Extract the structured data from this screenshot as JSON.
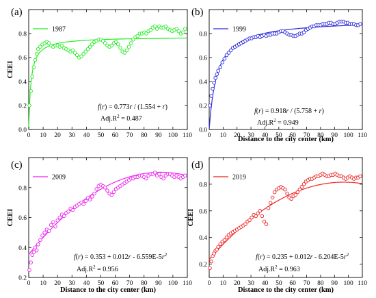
{
  "chart_data": [
    {
      "type": "scatter",
      "panel_label": "(a)",
      "series_name": "1987",
      "color": "#22ee22",
      "xlabel": "",
      "ylabel": "CEEI",
      "xlim": [
        0,
        110
      ],
      "ylim": [
        0,
        1.0
      ],
      "xticks": [
        0,
        10,
        20,
        30,
        40,
        50,
        60,
        70,
        80,
        90,
        100,
        110
      ],
      "yticks": [
        0.0,
        0.2,
        0.4,
        0.6,
        0.8
      ],
      "equation": "f(r) = 0.773r / (1.554 + r)",
      "eq_parts": {
        "fn": "f",
        "p1": "(",
        "var1": "r",
        "p2": ") = 0.773",
        "var2": "r",
        "p3": " / (1.554 + ",
        "var3": "r",
        "p4": ")"
      },
      "adj_r2": "Adj.R² = 0.487",
      "adj_parts": {
        "lead": "Adj.R",
        "sup": "2",
        "tail": " = 0.487"
      },
      "fit": {
        "kind": "hyperbolic",
        "a": 0.773,
        "b": 1.554
      },
      "points": {
        "x": [
          0.5,
          1.5,
          2.5,
          3.5,
          4.5,
          5.5,
          6.5,
          8,
          9.5,
          11,
          12.5,
          14,
          15.5,
          17,
          18.5,
          20,
          21.5,
          23,
          24.5,
          26,
          27.5,
          29,
          30.5,
          32,
          33.5,
          35,
          36.5,
          38,
          39.5,
          41,
          42.5,
          44,
          45.5,
          47,
          48.5,
          50,
          51.5,
          53,
          54.5,
          56,
          57.5,
          59,
          60.5,
          62,
          63.5,
          65,
          66.5,
          68,
          69.5,
          71,
          72.5,
          74,
          75.5,
          77,
          78.5,
          80,
          81.5,
          83,
          84.5,
          86,
          87.5,
          89,
          90.5,
          92,
          93.5,
          95,
          96.5,
          98,
          99.5,
          101,
          102.5,
          104,
          105.5,
          107,
          108.5
        ],
        "y": [
          0.2,
          0.32,
          0.44,
          0.52,
          0.58,
          0.63,
          0.67,
          0.69,
          0.71,
          0.72,
          0.73,
          0.72,
          0.7,
          0.69,
          0.7,
          0.7,
          0.69,
          0.7,
          0.68,
          0.67,
          0.66,
          0.65,
          0.66,
          0.64,
          0.62,
          0.6,
          0.61,
          0.63,
          0.65,
          0.67,
          0.69,
          0.71,
          0.73,
          0.74,
          0.75,
          0.75,
          0.74,
          0.72,
          0.7,
          0.69,
          0.7,
          0.72,
          0.73,
          0.71,
          0.68,
          0.65,
          0.64,
          0.66,
          0.69,
          0.72,
          0.75,
          0.77,
          0.78,
          0.8,
          0.8,
          0.81,
          0.8,
          0.82,
          0.83,
          0.85,
          0.86,
          0.84,
          0.86,
          0.85,
          0.85,
          0.86,
          0.84,
          0.83,
          0.82,
          0.83,
          0.84,
          0.82,
          0.8,
          0.81,
          0.84
        ]
      }
    },
    {
      "type": "scatter",
      "panel_label": "(b)",
      "series_name": "1999",
      "color": "#2b2bd9",
      "xlabel": "Distance to the city center (km)",
      "ylabel": "",
      "xlim": [
        0,
        110
      ],
      "ylim": [
        0,
        1.0
      ],
      "xticks": [
        0,
        10,
        20,
        30,
        40,
        50,
        60,
        70,
        80,
        90,
        100,
        110
      ],
      "yticks": [
        0.0,
        0.2,
        0.4,
        0.6,
        0.8
      ],
      "equation": "f(r) = 0.918r / (5.758 + r)",
      "eq_parts": {
        "fn": "f",
        "p1": "(",
        "var1": "r",
        "p2": ") = 0.918",
        "var2": "r",
        "p3": " / (5.758 + ",
        "var3": "r",
        "p4": ")"
      },
      "adj_r2": "Adj.R² = 0.949",
      "adj_parts": {
        "lead": "Adj.R",
        "sup": "2",
        "tail": " = 0.949"
      },
      "fit": {
        "kind": "hyperbolic",
        "a": 0.918,
        "b": 5.758
      },
      "points": {
        "x": [
          0.5,
          1.5,
          2.5,
          3.5,
          4.5,
          5.5,
          6.5,
          8,
          9.5,
          11,
          12.5,
          14,
          15.5,
          17,
          18.5,
          20,
          21.5,
          23,
          24.5,
          26,
          27.5,
          29,
          30.5,
          32,
          33.5,
          35,
          36.5,
          38,
          39.5,
          41,
          42.5,
          44,
          45.5,
          47,
          48.5,
          50,
          51.5,
          53,
          54.5,
          56,
          57.5,
          59,
          60.5,
          62,
          63.5,
          65,
          66.5,
          68,
          69.5,
          71,
          72.5,
          74,
          75.5,
          77,
          78.5,
          80,
          81.5,
          83,
          84.5,
          86,
          87.5,
          89,
          90.5,
          92,
          93.5,
          95,
          96.5,
          98,
          99.5,
          101,
          102.5,
          104,
          105.5,
          107,
          108.5
        ],
        "y": [
          0.2,
          0.28,
          0.34,
          0.39,
          0.43,
          0.46,
          0.49,
          0.52,
          0.56,
          0.59,
          0.62,
          0.64,
          0.66,
          0.68,
          0.69,
          0.7,
          0.71,
          0.72,
          0.73,
          0.74,
          0.75,
          0.76,
          0.76,
          0.77,
          0.77,
          0.78,
          0.77,
          0.78,
          0.79,
          0.78,
          0.79,
          0.79,
          0.8,
          0.8,
          0.8,
          0.81,
          0.82,
          0.82,
          0.81,
          0.8,
          0.79,
          0.79,
          0.78,
          0.78,
          0.79,
          0.8,
          0.8,
          0.81,
          0.83,
          0.84,
          0.85,
          0.86,
          0.86,
          0.87,
          0.87,
          0.87,
          0.88,
          0.88,
          0.88,
          0.89,
          0.89,
          0.88,
          0.88,
          0.89,
          0.9,
          0.9,
          0.9,
          0.89,
          0.89,
          0.88,
          0.88,
          0.88,
          0.87,
          0.87,
          0.88
        ]
      }
    },
    {
      "type": "scatter",
      "panel_label": "(c)",
      "series_name": "2009",
      "color": "#ee22ee",
      "xlabel": "Distance to the city center (km)",
      "ylabel": "CEEI",
      "xlim": [
        0,
        110
      ],
      "ylim": [
        0.2,
        1.0
      ],
      "xticks": [
        0,
        10,
        20,
        30,
        40,
        50,
        60,
        70,
        80,
        90,
        100,
        110
      ],
      "yticks": [
        0.2,
        0.4,
        0.6,
        0.8
      ],
      "equation": "f(r) = 0.353 + 0.012r - 6.559E-5r²",
      "eq_parts": {
        "fn": "f",
        "p1": "(",
        "var1": "r",
        "p2": ") = 0.353 + 0.012",
        "var2": "r",
        "p3": " - 6.559E-5",
        "var3": "r",
        "sup": "2"
      },
      "adj_r2": "Adj.R² = 0.956",
      "adj_parts": {
        "lead": "Adj.R",
        "sup": "2",
        "tail": " = 0.956"
      },
      "fit": {
        "kind": "quadratic",
        "c0": 0.353,
        "c1": 0.012,
        "c2": -6.559e-05
      },
      "points": {
        "x": [
          0.5,
          1.5,
          2.5,
          3.5,
          4.5,
          5.5,
          6.5,
          8,
          9.5,
          11,
          12.5,
          14,
          15.5,
          17,
          18.5,
          20,
          21.5,
          23,
          24.5,
          26,
          27.5,
          29,
          30.5,
          32,
          33.5,
          35,
          36.5,
          38,
          39.5,
          41,
          42.5,
          44,
          45.5,
          47,
          48.5,
          50,
          51.5,
          53,
          54.5,
          56,
          57.5,
          59,
          60.5,
          62,
          63.5,
          65,
          66.5,
          68,
          69.5,
          71,
          72.5,
          74,
          75.5,
          77,
          78.5,
          80,
          81.5,
          83,
          84.5,
          86,
          87.5,
          89,
          90.5,
          92,
          93.5,
          95,
          96.5,
          98,
          99.5,
          101,
          102.5,
          104,
          105.5,
          107,
          108.5
        ],
        "y": [
          0.25,
          0.3,
          0.35,
          0.37,
          0.4,
          0.38,
          0.42,
          0.45,
          0.48,
          0.5,
          0.52,
          0.51,
          0.55,
          0.57,
          0.54,
          0.58,
          0.6,
          0.62,
          0.61,
          0.63,
          0.64,
          0.66,
          0.65,
          0.67,
          0.68,
          0.69,
          0.7,
          0.69,
          0.71,
          0.73,
          0.72,
          0.74,
          0.76,
          0.79,
          0.81,
          0.82,
          0.81,
          0.8,
          0.78,
          0.76,
          0.75,
          0.77,
          0.79,
          0.8,
          0.81,
          0.82,
          0.83,
          0.84,
          0.85,
          0.86,
          0.86,
          0.87,
          0.87,
          0.88,
          0.88,
          0.87,
          0.86,
          0.88,
          0.89,
          0.89,
          0.9,
          0.88,
          0.89,
          0.87,
          0.86,
          0.88,
          0.89,
          0.89,
          0.88,
          0.87,
          0.88,
          0.87,
          0.86,
          0.87,
          0.88
        ]
      }
    },
    {
      "type": "scatter",
      "panel_label": "(d)",
      "series_name": "2019",
      "color": "#ee2222",
      "xlabel": "Distance to the city center (km)",
      "ylabel": "CEEI",
      "xlim": [
        0,
        110
      ],
      "ylim": [
        0.1,
        1.0
      ],
      "xticks": [
        0,
        10,
        20,
        30,
        40,
        50,
        60,
        70,
        80,
        90,
        100,
        110
      ],
      "yticks": [
        0.2,
        0.4,
        0.6,
        0.8
      ],
      "equation": "f(r) = 0.235 + 0.012r - 6.204E-5r²",
      "eq_parts": {
        "fn": "f",
        "p1": "(",
        "var1": "r",
        "p2": ") = 0.235 + 0.012",
        "var2": "r",
        "p3": " - 6.204E-5",
        "var3": "r",
        "sup": "2"
      },
      "adj_r2": "Adj.R² = 0.963",
      "adj_parts": {
        "lead": "Adj.R",
        "sup": "2",
        "tail": " = 0.963"
      },
      "fit": {
        "kind": "quadratic",
        "c0": 0.235,
        "c1": 0.012,
        "c2": -6.204e-05
      },
      "points": {
        "x": [
          0.5,
          1.5,
          2.5,
          3.5,
          4.5,
          5.5,
          6.5,
          8,
          9.5,
          11,
          12.5,
          14,
          15.5,
          17,
          18.5,
          20,
          21.5,
          23,
          24.5,
          26,
          27.5,
          29,
          30.5,
          32,
          33.5,
          35,
          36.5,
          38,
          39.5,
          41,
          42.5,
          44,
          45.5,
          47,
          48.5,
          50,
          51.5,
          53,
          54.5,
          56,
          57.5,
          59,
          60.5,
          62,
          63.5,
          65,
          66.5,
          68,
          69.5,
          71,
          72.5,
          74,
          75.5,
          77,
          78.5,
          80,
          81.5,
          83,
          84.5,
          86,
          87.5,
          89,
          90.5,
          92,
          93.5,
          95,
          96.5,
          98,
          99.5,
          101,
          102.5,
          104,
          105.5,
          107,
          108.5
        ],
        "y": [
          0.17,
          0.22,
          0.26,
          0.28,
          0.3,
          0.31,
          0.33,
          0.35,
          0.37,
          0.38,
          0.4,
          0.42,
          0.43,
          0.44,
          0.45,
          0.46,
          0.47,
          0.48,
          0.49,
          0.5,
          0.52,
          0.53,
          0.55,
          0.57,
          0.56,
          0.58,
          0.6,
          0.56,
          0.52,
          0.5,
          0.62,
          0.66,
          0.7,
          0.74,
          0.76,
          0.77,
          0.78,
          0.77,
          0.76,
          0.73,
          0.7,
          0.69,
          0.71,
          0.72,
          0.74,
          0.76,
          0.78,
          0.8,
          0.82,
          0.83,
          0.84,
          0.84,
          0.85,
          0.86,
          0.86,
          0.87,
          0.88,
          0.87,
          0.86,
          0.86,
          0.87,
          0.87,
          0.88,
          0.87,
          0.86,
          0.86,
          0.85,
          0.84,
          0.85,
          0.86,
          0.85,
          0.84,
          0.85,
          0.85,
          0.86
        ]
      }
    }
  ]
}
